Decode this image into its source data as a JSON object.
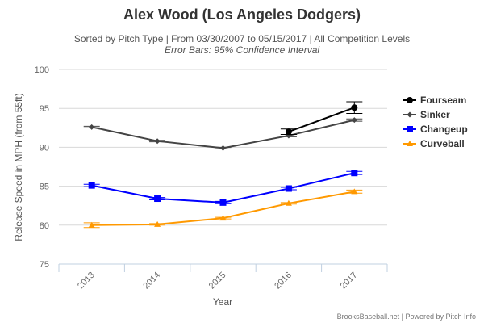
{
  "chart_data": {
    "type": "line",
    "title": "Alex Wood (Los Angeles Dodgers)",
    "subtitle": "Sorted by Pitch Type | From 03/30/2007 to 05/15/2017 | All Competition Levels",
    "subtitle2": "Error Bars: 95% Confidence Interval",
    "xlabel": "Year",
    "ylabel": "Release Speed in MPH (from 55ft)",
    "categories": [
      "2013",
      "2014",
      "2015",
      "2016",
      "2017"
    ],
    "ylim": [
      75,
      100
    ],
    "yticks": [
      "75",
      "80",
      "85",
      "90",
      "95",
      "100"
    ],
    "grid": true,
    "legend_position": "right",
    "series": [
      {
        "name": "Fourseam",
        "color": "#000000",
        "marker": "circle",
        "values": [
          null,
          null,
          null,
          92.0,
          95.1
        ],
        "err": [
          null,
          null,
          null,
          0.35,
          0.75
        ]
      },
      {
        "name": "Sinker",
        "color": "#444444",
        "marker": "diamond",
        "values": [
          92.6,
          90.8,
          89.9,
          91.5,
          93.5
        ],
        "err": [
          0.1,
          0.1,
          0.1,
          0.15,
          0.15
        ]
      },
      {
        "name": "Changeup",
        "color": "#0000ff",
        "marker": "square",
        "values": [
          85.1,
          83.4,
          82.9,
          84.7,
          86.7
        ],
        "err": [
          0.15,
          0.15,
          0.15,
          0.15,
          0.2
        ]
      },
      {
        "name": "Curveball",
        "color": "#ff9900",
        "marker": "triangle",
        "values": [
          80.0,
          80.1,
          80.9,
          82.8,
          84.3
        ],
        "err": [
          0.3,
          0.1,
          0.1,
          0.1,
          0.2
        ]
      }
    ]
  },
  "credit": "BrooksBaseball.net | Powered by Pitch Info"
}
